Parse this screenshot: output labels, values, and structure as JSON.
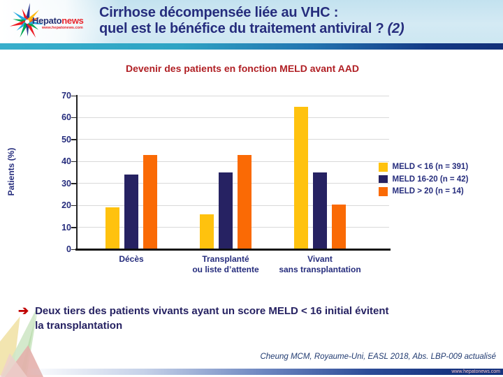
{
  "header": {
    "logo": {
      "brand_primary": "Hepato",
      "brand_secondary": "news",
      "site": "www.hepatonews.com"
    },
    "title_line1": "Cirrhose décompensée liée au VHC :",
    "title_line2": "quel est le bénéfice du traitement antiviral ?",
    "title_suffix": "(2)"
  },
  "chart_data": {
    "type": "bar",
    "title": "Devenir des patients en fonction MELD avant AAD",
    "ylabel": "Patients (%)",
    "ylim": [
      0,
      70
    ],
    "yticks": [
      0,
      10,
      20,
      30,
      40,
      50,
      60,
      70
    ],
    "grid": true,
    "legend_position": "right",
    "categories": [
      [
        "Décès"
      ],
      [
        "Transplanté",
        "ou liste d’attente"
      ],
      [
        "Vivant",
        "sans transplantation"
      ]
    ],
    "series": [
      {
        "name": "MELD < 16 (n = 391)",
        "color": "#FFC20E",
        "values": [
          19,
          16,
          65
        ]
      },
      {
        "name": "MELD 16-20 (n = 42)",
        "color": "#262262",
        "values": [
          34,
          35,
          35
        ]
      },
      {
        "name": "MELD > 20 (n = 14)",
        "color": "#FA6A05",
        "values": [
          43,
          43,
          20.5
        ]
      }
    ]
  },
  "takeaway": {
    "arrow": "➔",
    "line1": "Deux tiers des patients vivants ayant un score MELD < 16 initial évitent",
    "line2": "la transplantation"
  },
  "footer": {
    "citation": "Cheung MCM, Royaume-Uni, EASL 2018, Abs. LBP-009 actualisé",
    "site": "www.hepatonews.com"
  },
  "colors": {
    "chart_title_red": "#B01F24",
    "navy_text": "#262D7D",
    "bar_yellow": "#FFC20E",
    "bar_navy": "#262262",
    "bar_orange": "#FA6A05",
    "divider_cyan": "#38AECB",
    "divider_navy": "#122F78"
  }
}
